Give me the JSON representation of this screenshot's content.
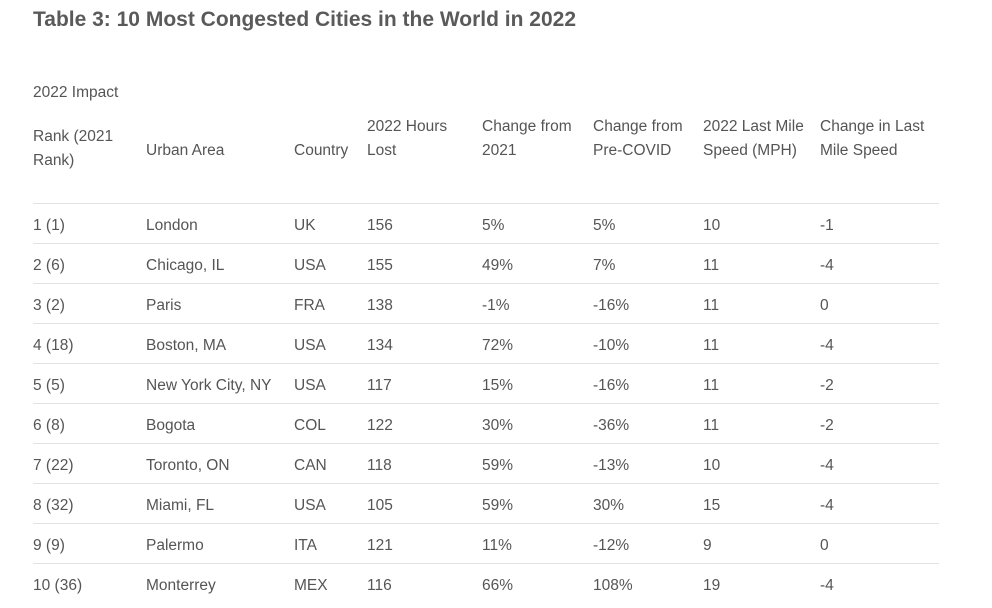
{
  "title": "Table 3: 10 Most Congested Cities in the World in 2022",
  "caption": "2022 Impact",
  "headers": [
    {
      "line1": "Rank (2021",
      "line2": "Rank)"
    },
    {
      "line1": "Urban Area",
      "line2": ""
    },
    {
      "line1": "Country",
      "line2": ""
    },
    {
      "line1": "2022 Hours",
      "line2": "Lost"
    },
    {
      "line1": "Change from",
      "line2": "2021"
    },
    {
      "line1": "Change from",
      "line2": "Pre-COVID"
    },
    {
      "line1": "2022 Last Mile",
      "line2": "Speed (MPH)"
    },
    {
      "line1": "Change in Last",
      "line2": "Mile Speed"
    }
  ],
  "rows": [
    [
      "1 (1)",
      "London",
      "UK",
      "156",
      "5%",
      "5%",
      "10",
      "-1"
    ],
    [
      "2 (6)",
      "Chicago, IL",
      "USA",
      "155",
      "49%",
      "7%",
      "11",
      "-4"
    ],
    [
      "3 (2)",
      "Paris",
      "FRA",
      "138",
      "-1%",
      "-16%",
      "11",
      "0"
    ],
    [
      "4 (18)",
      "Boston, MA",
      "USA",
      "134",
      "72%",
      "-10%",
      "11",
      "-4"
    ],
    [
      "5 (5)",
      "New York City, NY",
      "USA",
      "117",
      "15%",
      "-16%",
      "11",
      "-2"
    ],
    [
      "6 (8)",
      "Bogota",
      "COL",
      "122",
      "30%",
      "-36%",
      "11",
      "-2"
    ],
    [
      "7 (22)",
      "Toronto, ON",
      "CAN",
      "118",
      "59%",
      "-13%",
      "10",
      "-4"
    ],
    [
      "8 (32)",
      "Miami, FL",
      "USA",
      "105",
      "59%",
      "30%",
      "15",
      "-4"
    ],
    [
      "9 (9)",
      "Palermo",
      "ITA",
      "121",
      "11%",
      "-12%",
      "9",
      "0"
    ],
    [
      "10 (36)",
      "Monterrey",
      "MEX",
      "116",
      "66%",
      "108%",
      "19",
      "-4"
    ]
  ]
}
